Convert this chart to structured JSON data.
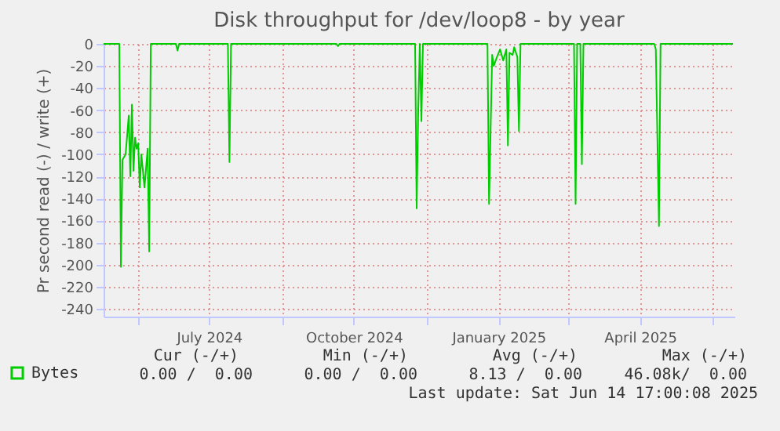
{
  "chart_data": {
    "type": "line",
    "title": "Disk throughput for /dev/loop8 - by year",
    "ylabel": "Pr second read (-) / write (+)",
    "x": [
      "2024-05-10",
      "2024-05-20",
      "2024-05-21",
      "2024-05-22",
      "2024-05-24",
      "2024-05-26",
      "2024-05-27",
      "2024-05-28",
      "2024-05-29",
      "2024-05-30",
      "2024-05-31",
      "2024-06-01",
      "2024-06-02",
      "2024-06-03",
      "2024-06-05",
      "2024-06-07",
      "2024-06-08",
      "2024-06-09",
      "2024-06-25",
      "2024-06-26",
      "2024-06-27",
      "2024-07-28",
      "2024-07-29",
      "2024-07-30",
      "2024-10-05",
      "2024-10-06",
      "2024-10-07",
      "2024-11-24",
      "2024-11-25",
      "2024-11-26",
      "2024-11-27",
      "2024-11-28",
      "2024-11-29",
      "2025-01-09",
      "2025-01-10",
      "2025-01-12",
      "2025-01-13",
      "2025-01-15",
      "2025-01-17",
      "2025-01-19",
      "2025-01-21",
      "2025-01-22",
      "2025-01-23",
      "2025-01-25",
      "2025-01-26",
      "2025-01-28",
      "2025-01-29",
      "2025-01-30",
      "2025-03-05",
      "2025-03-06",
      "2025-03-07",
      "2025-03-09",
      "2025-03-10",
      "2025-03-11",
      "2025-04-25",
      "2025-04-26",
      "2025-04-28",
      "2025-04-29",
      "2025-06-14"
    ],
    "series": [
      {
        "name": "Bytes",
        "color": "#00cc00",
        "values": [
          0,
          0,
          -202,
          -105,
          -100,
          -65,
          -120,
          -55,
          -115,
          -85,
          -95,
          -90,
          -130,
          -100,
          -130,
          -95,
          -188,
          0,
          0,
          -6,
          0,
          0,
          -107,
          0,
          0,
          -2,
          0,
          0,
          -149,
          -60,
          0,
          -70,
          0,
          0,
          -145,
          -10,
          -20,
          -12,
          -5,
          -15,
          -5,
          -92,
          -8,
          -10,
          -3,
          -12,
          -79,
          0,
          0,
          -145,
          0,
          0,
          -109,
          0,
          0,
          -5,
          -165,
          0,
          0
        ]
      }
    ],
    "xlim": [
      "2024-05-10",
      "2025-06-15"
    ],
    "xticks": [
      {
        "value": "2024-06-01",
        "label": null
      },
      {
        "value": "2024-07-16",
        "label": "July 2024"
      },
      {
        "value": "2024-09-01",
        "label": null
      },
      {
        "value": "2024-10-16",
        "label": "October 2024"
      },
      {
        "value": "2024-12-01",
        "label": null
      },
      {
        "value": "2025-01-16",
        "label": "January 2025"
      },
      {
        "value": "2025-03-01",
        "label": null
      },
      {
        "value": "2025-04-16",
        "label": "April 2025"
      },
      {
        "value": "2025-06-01",
        "label": null
      }
    ],
    "ylim": [
      -247,
      0
    ],
    "yticks": [
      {
        "value": 0,
        "label": "0"
      },
      {
        "value": -20,
        "label": "-20"
      },
      {
        "value": -40,
        "label": "-40"
      },
      {
        "value": -60,
        "label": "-60"
      },
      {
        "value": -80,
        "label": "-80"
      },
      {
        "value": -100,
        "label": "-100"
      },
      {
        "value": -120,
        "label": "-120"
      },
      {
        "value": -140,
        "label": "-140"
      },
      {
        "value": -160,
        "label": "-160"
      },
      {
        "value": -180,
        "label": "-180"
      },
      {
        "value": -200,
        "label": "-200"
      },
      {
        "value": -220,
        "label": "-220"
      },
      {
        "value": -240,
        "label": "-240"
      }
    ],
    "grid": true,
    "legend": "bottom left",
    "annotations": [
      "Cur (-/+)",
      "Min (-/+)",
      "Avg (-/+)",
      "Max (-/+)",
      "0.00 /  0.00",
      "0.00 /  0.00",
      "8.13 /  0.00",
      "46.08k/  0.00",
      "Last update: Sat Jun 14 17:00:08 2025"
    ]
  }
}
